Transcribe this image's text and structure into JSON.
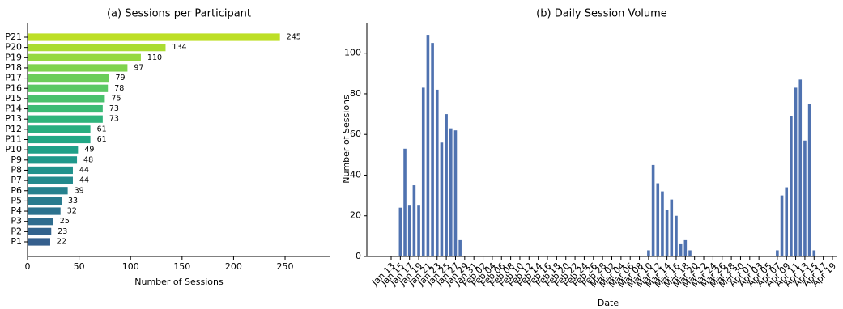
{
  "chart_data": [
    {
      "type": "barh",
      "title": "(a) Sessions per Participant",
      "xlabel": "Number of Sessions",
      "categories": [
        "P1",
        "P2",
        "P3",
        "P4",
        "P5",
        "P6",
        "P7",
        "P8",
        "P9",
        "P10",
        "P11",
        "P12",
        "P13",
        "P14",
        "P15",
        "P16",
        "P17",
        "P18",
        "P19",
        "P20",
        "P21"
      ],
      "values": [
        22,
        23,
        25,
        32,
        33,
        39,
        44,
        44,
        48,
        49,
        61,
        61,
        73,
        73,
        75,
        78,
        79,
        97,
        110,
        134,
        245
      ],
      "colors": [
        "#355f8d",
        "#33638d",
        "#2f6c8e",
        "#2c728e",
        "#297b8e",
        "#26818e",
        "#238a8d",
        "#20928c",
        "#1f988b",
        "#1fa088",
        "#22a785",
        "#28ae80",
        "#2fb47c",
        "#3bbb75",
        "#4ac16d",
        "#5ac864",
        "#6ccd5a",
        "#7fd34e",
        "#95d840",
        "#aadc32",
        "#bddf26"
      ],
      "xlim": [
        0,
        294
      ],
      "xticks": [
        0,
        50,
        100,
        150,
        200,
        250
      ]
    },
    {
      "type": "bar",
      "title": "(b) Daily Session Volume",
      "xlabel": "Date",
      "ylabel": "Number of Sessions",
      "color": "#4f72b0",
      "categories": [
        "Jan 13",
        null,
        "Jan 15",
        null,
        "Jan 17",
        null,
        "Jan 19",
        null,
        "Jan 21",
        null,
        "Jan 23",
        null,
        "Jan 25",
        null,
        "Jan 27",
        null,
        "Jan 29",
        null,
        "Jan 31",
        null,
        "Feb 02",
        null,
        "Feb 04",
        null,
        "Feb 06",
        null,
        "Feb 08",
        null,
        "Feb 10",
        null,
        "Feb 12",
        null,
        "Feb 14",
        null,
        "Feb 16",
        null,
        "Feb 18",
        null,
        "Feb 20",
        null,
        "Feb 22",
        null,
        "Feb 24",
        null,
        "Feb 26",
        null,
        "Feb 28",
        null,
        "Mar 02",
        null,
        "Mar 04",
        null,
        "Mar 06",
        null,
        "Mar 08",
        null,
        "Mar 10",
        null,
        "Mar 12",
        null,
        "Mar 14",
        null,
        "Mar 16",
        null,
        "Mar 18",
        null,
        "Mar 20",
        null,
        "Mar 22",
        null,
        "Mar 24",
        null,
        "Mar 26",
        null,
        "Mar 28",
        null,
        "Mar 30",
        null,
        "Apr 01",
        null,
        "Apr 03",
        null,
        "Apr 05",
        null,
        "Apr 07",
        null,
        "Apr 09",
        null,
        "Apr 11",
        null,
        "Apr 13",
        null,
        "Apr 15",
        null,
        "Apr 17",
        null,
        "Apr 19"
      ],
      "values": [
        0,
        0,
        24,
        53,
        25,
        35,
        25,
        83,
        109,
        105,
        82,
        56,
        70,
        63,
        62,
        8,
        0,
        0,
        0,
        0,
        0,
        0,
        0,
        0,
        0,
        0,
        0,
        0,
        0,
        0,
        0,
        0,
        0,
        0,
        0,
        0,
        0,
        0,
        0,
        0,
        0,
        0,
        0,
        0,
        0,
        0,
        0,
        0,
        0,
        0,
        0,
        0,
        0,
        0,
        0,
        0,
        3,
        45,
        36,
        32,
        23,
        28,
        20,
        6,
        8,
        3,
        0,
        0,
        0,
        0,
        0,
        0,
        0,
        0,
        0,
        0,
        0,
        0,
        0,
        0,
        0,
        0,
        0,
        0,
        3,
        30,
        34,
        69,
        83,
        87,
        57,
        75,
        3,
        0,
        0,
        0,
        0
      ],
      "ylim": [
        0,
        115
      ],
      "yticks": [
        0,
        20,
        40,
        60,
        80,
        100
      ]
    }
  ]
}
